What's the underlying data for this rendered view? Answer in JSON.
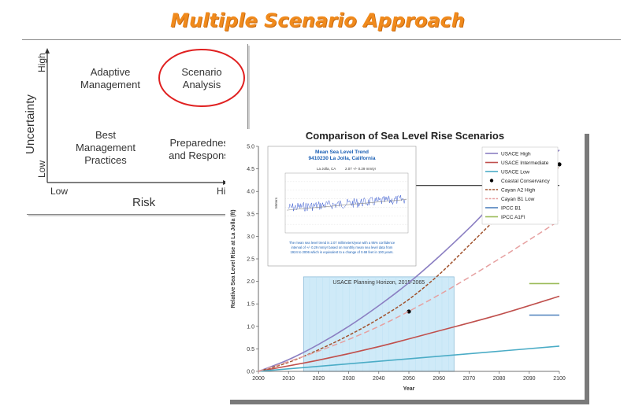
{
  "slide": {
    "title": "Multiple Scenario Approach"
  },
  "matrix": {
    "y_axis_title": "Uncertainty",
    "x_axis_title": "Risk",
    "y_high": "High",
    "y_low": "Low",
    "x_low": "Low",
    "x_high": "High",
    "cells": {
      "top_left": [
        "Adaptive",
        "Management"
      ],
      "top_right": [
        "Scenario",
        "Analysis"
      ],
      "bottom_left": [
        "Best",
        "Management",
        "Practices"
      ],
      "bottom_right": [
        "Preparedness",
        "and Response"
      ]
    },
    "highlight_color": "#e02020"
  },
  "chart_data": {
    "type": "line",
    "title": "Comparison of Sea Level Rise Scenarios",
    "xlabel": "Year",
    "ylabel": "Relative Sea Level Rise at La Jolla (ft)",
    "xlim": [
      2000,
      2100
    ],
    "ylim": [
      0,
      5.0
    ],
    "x_ticks": [
      2000,
      2010,
      2020,
      2030,
      2040,
      2050,
      2060,
      2070,
      2080,
      2090,
      2100
    ],
    "y_ticks": [
      "0.0",
      "0.5",
      "1.0",
      "1.5",
      "2.0",
      "2.5",
      "3.0",
      "3.5",
      "4.0",
      "4.5",
      "5.0"
    ],
    "grid": false,
    "legend_placement": "top-right",
    "series": [
      {
        "name": "USACE High",
        "color": "#8b7fc2",
        "style": "solid",
        "x": [
          2000,
          2010,
          2020,
          2030,
          2040,
          2050,
          2060,
          2070,
          2080,
          2090,
          2100
        ],
        "values": [
          0.0,
          0.26,
          0.6,
          1.0,
          1.46,
          1.97,
          2.55,
          3.18,
          3.85,
          4.37,
          4.92
        ]
      },
      {
        "name": "USACE Intermediate",
        "color": "#c0504d",
        "style": "solid",
        "x": [
          2000,
          2020,
          2040,
          2060,
          2080,
          2100
        ],
        "values": [
          0.0,
          0.25,
          0.55,
          0.9,
          1.26,
          1.67
        ]
      },
      {
        "name": "USACE Low",
        "color": "#4bacc6",
        "style": "solid",
        "x": [
          2000,
          2100
        ],
        "values": [
          0.0,
          0.56
        ]
      },
      {
        "name": "Coastal Conservancy",
        "color": "#000000",
        "style": "marker",
        "x": [
          2050,
          2100
        ],
        "values": [
          1.33,
          4.6
        ]
      },
      {
        "name": "Cayan A2 High",
        "color": "#a0522d",
        "style": "dashed",
        "x": [
          2000,
          2010,
          2020,
          2030,
          2040,
          2050,
          2060,
          2070,
          2080,
          2090,
          2100
        ],
        "values": [
          0.0,
          0.2,
          0.48,
          0.8,
          1.17,
          1.6,
          2.15,
          2.8,
          3.45,
          4.0,
          4.55
        ]
      },
      {
        "name": "Cayan B1 Low",
        "color": "#e6a0a0",
        "style": "dashed",
        "x": [
          2000,
          2020,
          2040,
          2060,
          2080,
          2100
        ],
        "values": [
          0.0,
          0.45,
          1.0,
          1.7,
          2.5,
          3.35
        ]
      },
      {
        "name": "IPCC B1",
        "color": "#4f81bd",
        "style": "solid",
        "x": [
          2090,
          2100
        ],
        "values": [
          1.25,
          1.25
        ]
      },
      {
        "name": "IPCC A1FI",
        "color": "#9bbb59",
        "style": "solid",
        "x": [
          2090,
          2100
        ],
        "values": [
          1.95,
          1.95
        ]
      }
    ],
    "reference_line": {
      "color": "#000000",
      "x": [
        2046,
        2100
      ],
      "value": 4.13
    },
    "annotations": [
      {
        "text": "USACE Planning Horizon, 2015-2065",
        "x_range": [
          2015,
          2065
        ],
        "y_range": [
          0,
          2.1
        ],
        "fill": "#cfeaf8"
      }
    ],
    "inset": {
      "title_lines": [
        "Mean Sea Level Trend",
        "9410230 La Jolla, California"
      ],
      "station_label": "La Jolla, CA",
      "trend_label": "2.07 +/- 0.29 mm/yr",
      "note_lines": [
        "The mean sea level trend is 2.07 millimeters/year with a 95% confidence",
        "interval of +/- 0.29 mm/yr based on monthly mean sea level data from",
        "1924 to 2006 which is equivalent to a change of 0.68 feet in 100 years."
      ],
      "y_label": "Meters",
      "line_color": "#3a5bd0",
      "trend_color": "#888888"
    }
  }
}
